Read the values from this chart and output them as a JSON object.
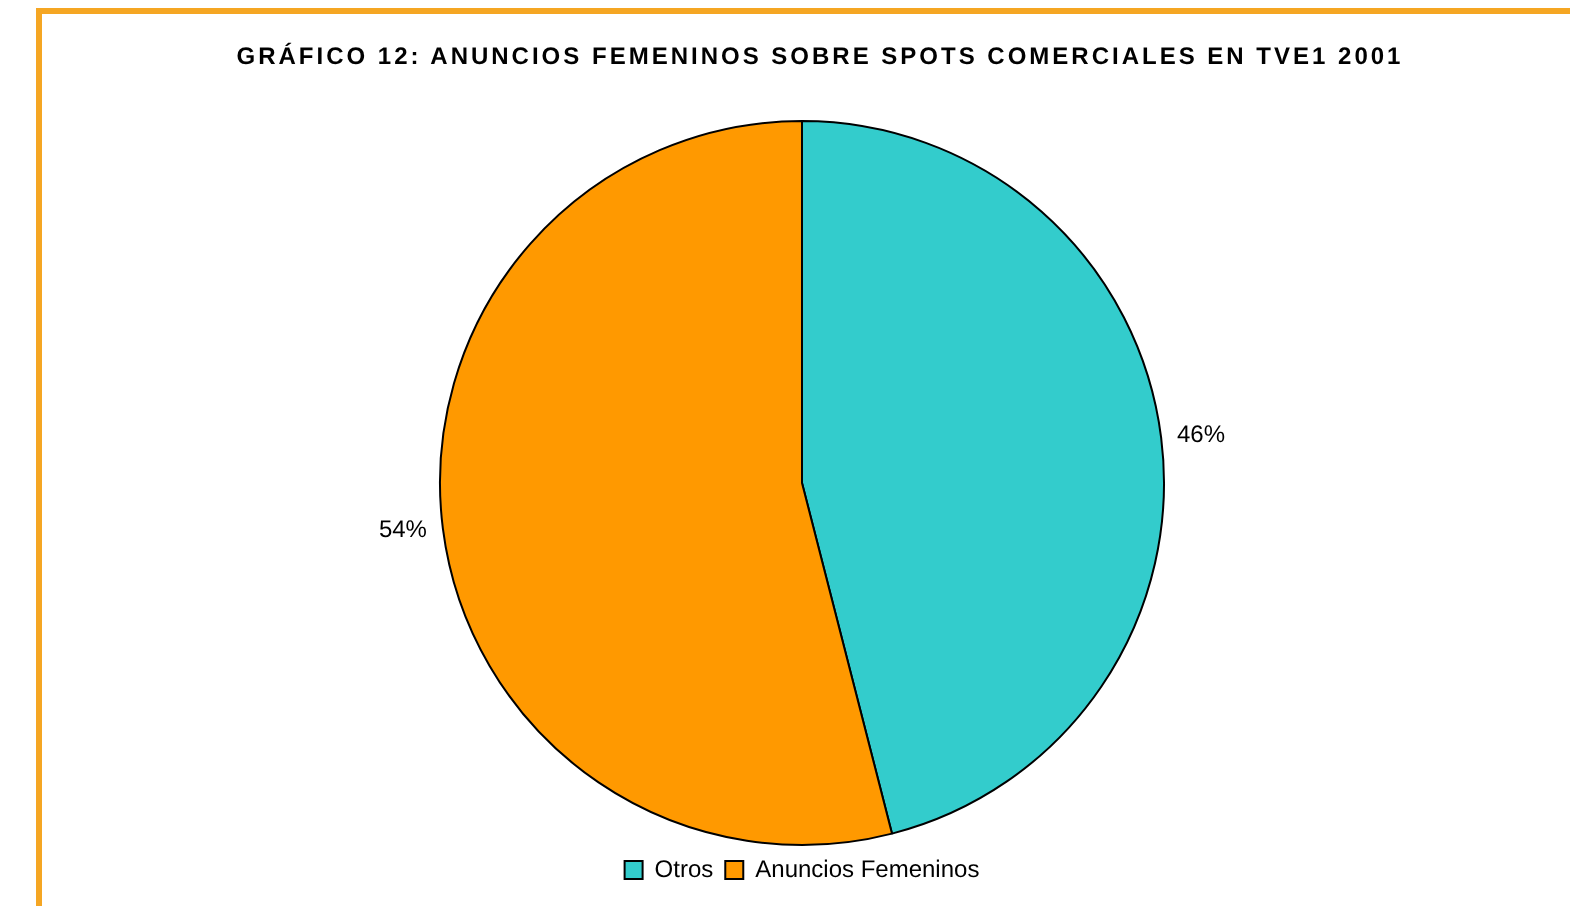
{
  "chart_data": {
    "type": "pie",
    "title": "GRÁFICO 12: ANUNCIOS FEMENINOS SOBRE SPOTS COMERCIALES EN TVE1 2001",
    "categories": [
      "Otros",
      "Anuncios Femeninos"
    ],
    "values": [
      46,
      54
    ],
    "colors": [
      "#33cccc",
      "#ff9900"
    ],
    "value_labels": [
      "46%",
      "54%"
    ],
    "legend": "bottom"
  }
}
